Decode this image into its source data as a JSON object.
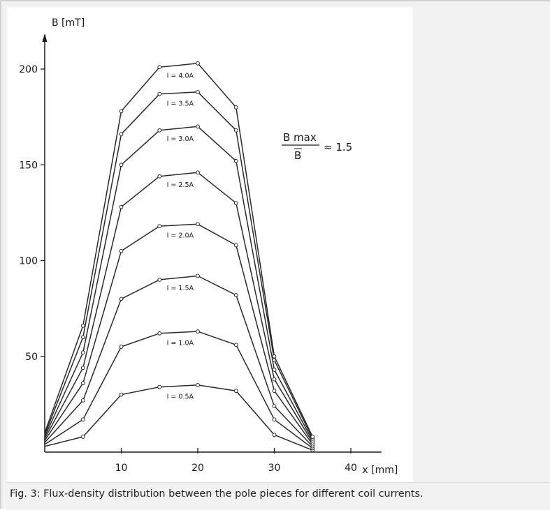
{
  "caption": "Fig. 3: Flux-density distribution between the pole pieces for different coil currents.",
  "formula": {
    "numerator": "B max",
    "denominator": "B",
    "relation": "≈ 1.5"
  },
  "chart_data": {
    "type": "line",
    "title": "",
    "xlabel": "x [mm]",
    "ylabel": "B [mT]",
    "xlim": [
      0,
      45
    ],
    "ylim": [
      0,
      220
    ],
    "x_ticks": [
      10,
      20,
      30,
      40
    ],
    "x_tick_labels": [
      "10",
      "20",
      "30",
      "40"
    ],
    "y_ticks": [
      50,
      100,
      150,
      200
    ],
    "y_tick_labels": [
      "50",
      "100",
      "150",
      "200"
    ],
    "grid": false,
    "legend": "inline labels",
    "line_color": "#2a2a2a",
    "x": [
      0,
      5,
      10,
      15,
      20,
      25,
      30,
      35
    ],
    "series": [
      {
        "name": "I = 0.5A",
        "values": [
          3,
          8,
          30,
          34,
          35,
          32,
          9,
          1
        ]
      },
      {
        "name": "I = 1.0A",
        "values": [
          4,
          17,
          55,
          62,
          63,
          56,
          17,
          2
        ]
      },
      {
        "name": "I = 1.5A",
        "values": [
          5,
          27,
          80,
          90,
          92,
          82,
          24,
          3
        ]
      },
      {
        "name": "I = 2.0A",
        "values": [
          6,
          36,
          105,
          118,
          119,
          108,
          32,
          4
        ]
      },
      {
        "name": "I = 2.5A",
        "values": [
          7,
          44,
          128,
          144,
          146,
          130,
          38,
          5
        ]
      },
      {
        "name": "I = 3.0A",
        "values": [
          8,
          52,
          150,
          168,
          170,
          152,
          43,
          6
        ]
      },
      {
        "name": "I = 3.5A",
        "values": [
          9,
          60,
          166,
          187,
          188,
          168,
          48,
          7
        ]
      },
      {
        "name": "I = 4.0A",
        "values": [
          10,
          66,
          178,
          201,
          203,
          180,
          50,
          8
        ]
      }
    ]
  }
}
